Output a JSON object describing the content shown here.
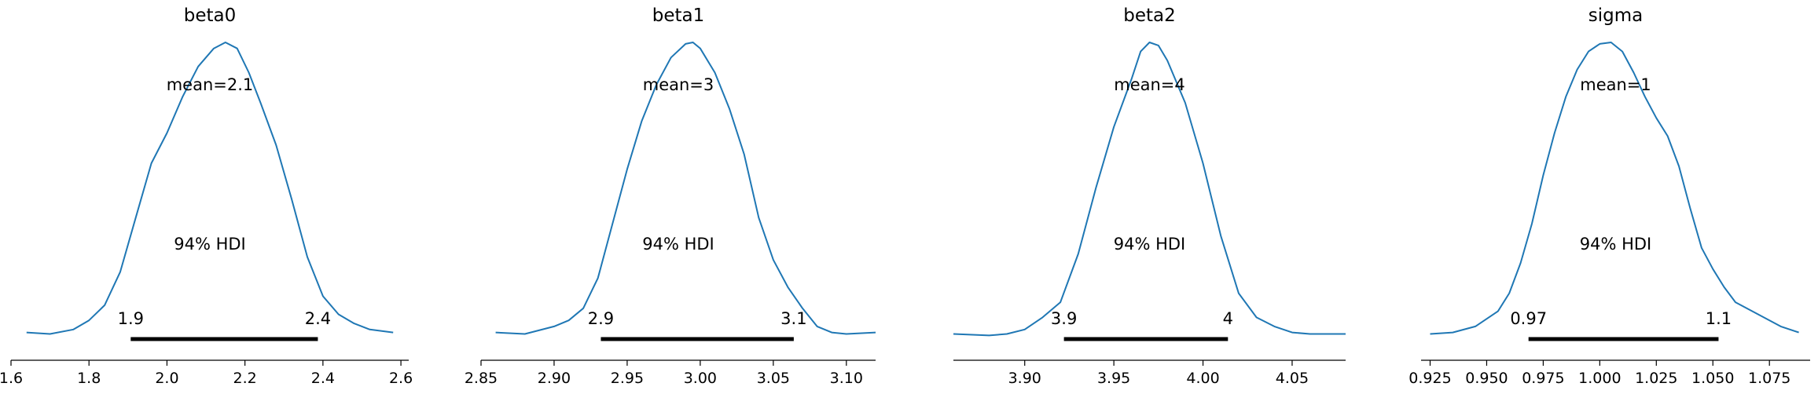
{
  "chart_data": [
    {
      "type": "line",
      "title": "beta0",
      "mean_label": "mean=2.1",
      "hdi_label": "94% HDI",
      "hdi": [
        1.907,
        2.387
      ],
      "hdi_labels": [
        "1.9",
        "2.4"
      ],
      "xlim": [
        1.6,
        2.62
      ],
      "xticks": [
        1.6,
        1.8,
        2.0,
        2.2,
        2.4,
        2.6
      ],
      "xtick_labels": [
        "1.6",
        "1.8",
        "2.0",
        "2.2",
        "2.4",
        "2.6"
      ],
      "series": [
        {
          "x": [
            1.64,
            1.7,
            1.76,
            1.8,
            1.84,
            1.88,
            1.92,
            1.96,
            2.0,
            2.04,
            2.08,
            2.12,
            2.15,
            2.18,
            2.21,
            2.24,
            2.28,
            2.32,
            2.36,
            2.4,
            2.44,
            2.48,
            2.52,
            2.58
          ],
          "y": [
            0.04,
            0.035,
            0.05,
            0.08,
            0.13,
            0.24,
            0.42,
            0.6,
            0.7,
            0.82,
            0.92,
            0.98,
            1.0,
            0.98,
            0.9,
            0.8,
            0.66,
            0.48,
            0.29,
            0.16,
            0.1,
            0.07,
            0.05,
            0.04
          ]
        }
      ]
    },
    {
      "type": "line",
      "title": "beta1",
      "mean_label": "mean=3",
      "hdi_label": "94% HDI",
      "hdi": [
        2.932,
        3.064
      ],
      "hdi_labels": [
        "2.9",
        "3.1"
      ],
      "xlim": [
        2.85,
        3.12
      ],
      "xticks": [
        2.85,
        2.9,
        2.95,
        3.0,
        3.05,
        3.1
      ],
      "xtick_labels": [
        "2.85",
        "2.90",
        "2.95",
        "3.00",
        "3.05",
        "3.10"
      ],
      "series": [
        {
          "x": [
            2.86,
            2.88,
            2.9,
            2.91,
            2.92,
            2.93,
            2.94,
            2.95,
            2.96,
            2.97,
            2.98,
            2.99,
            2.995,
            3.0,
            3.01,
            3.02,
            3.03,
            3.04,
            3.05,
            3.06,
            3.07,
            3.08,
            3.09,
            3.1,
            3.12
          ],
          "y": [
            0.04,
            0.035,
            0.06,
            0.08,
            0.12,
            0.22,
            0.4,
            0.58,
            0.74,
            0.86,
            0.95,
            0.995,
            1.0,
            0.98,
            0.9,
            0.78,
            0.63,
            0.42,
            0.28,
            0.19,
            0.12,
            0.06,
            0.04,
            0.035,
            0.04
          ]
        }
      ]
    },
    {
      "type": "line",
      "title": "beta2",
      "mean_label": "mean=4",
      "hdi_label": "94% HDI",
      "hdi": [
        3.922,
        4.014
      ],
      "hdi_labels": [
        "3.9",
        "4"
      ],
      "xlim": [
        3.86,
        4.08
      ],
      "xticks": [
        3.9,
        3.95,
        4.0,
        4.05
      ],
      "xtick_labels": [
        "3.90",
        "3.95",
        "4.00",
        "4.05"
      ],
      "series": [
        {
          "x": [
            3.86,
            3.88,
            3.89,
            3.9,
            3.91,
            3.92,
            3.93,
            3.94,
            3.95,
            3.96,
            3.965,
            3.97,
            3.975,
            3.98,
            3.99,
            4.0,
            4.01,
            4.02,
            4.03,
            4.04,
            4.05,
            4.06,
            4.08
          ],
          "y": [
            0.035,
            0.03,
            0.035,
            0.05,
            0.09,
            0.14,
            0.3,
            0.52,
            0.72,
            0.88,
            0.97,
            1.0,
            0.99,
            0.94,
            0.8,
            0.6,
            0.36,
            0.17,
            0.09,
            0.06,
            0.04,
            0.035,
            0.035
          ]
        }
      ]
    },
    {
      "type": "line",
      "title": "sigma",
      "mean_label": "mean=1",
      "hdi_label": "94% HDI",
      "hdi": [
        0.9685,
        1.0525
      ],
      "hdi_labels": [
        "0.97",
        "1.1"
      ],
      "xlim": [
        0.921,
        1.093
      ],
      "xticks": [
        0.925,
        0.95,
        0.975,
        1.0,
        1.025,
        1.05,
        1.075
      ],
      "xtick_labels": [
        "0.925",
        "0.950",
        "0.975",
        "1.000",
        "1.025",
        "1.050",
        "1.075"
      ],
      "series": [
        {
          "x": [
            0.925,
            0.935,
            0.945,
            0.955,
            0.96,
            0.965,
            0.97,
            0.975,
            0.98,
            0.985,
            0.99,
            0.995,
            1.0,
            1.005,
            1.01,
            1.015,
            1.02,
            1.025,
            1.03,
            1.035,
            1.04,
            1.045,
            1.05,
            1.055,
            1.06,
            1.07,
            1.08,
            1.088
          ],
          "y": [
            0.035,
            0.04,
            0.06,
            0.11,
            0.17,
            0.27,
            0.4,
            0.56,
            0.7,
            0.82,
            0.91,
            0.97,
            0.995,
            1.0,
            0.97,
            0.9,
            0.82,
            0.75,
            0.69,
            0.59,
            0.45,
            0.32,
            0.25,
            0.19,
            0.14,
            0.1,
            0.06,
            0.04
          ]
        }
      ]
    }
  ]
}
